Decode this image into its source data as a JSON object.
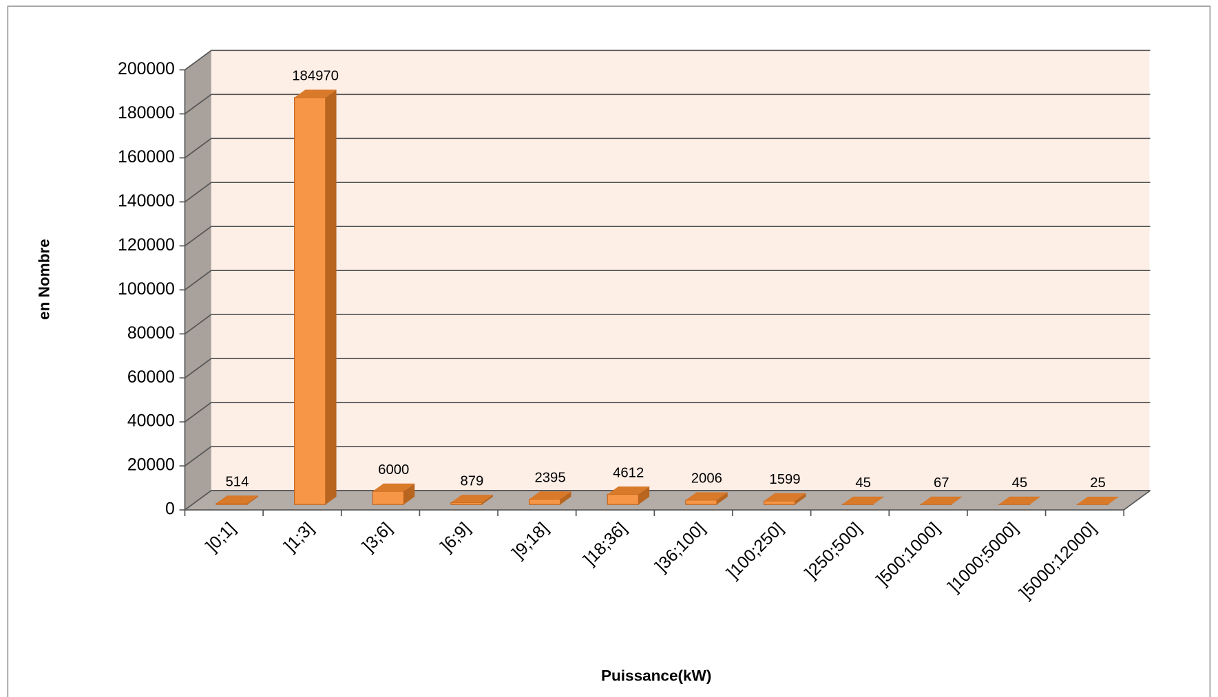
{
  "chart_data": {
    "type": "bar3d",
    "x_label": "Puissance(kW)",
    "y_label": "en Nombre",
    "categories": [
      "]0;1]",
      "]1;3]",
      "]3;6]",
      "]6;9]",
      "]9;18]",
      "]18;36]",
      "]36;100]",
      "]100;250]",
      "]250;500]",
      "]500;1000]",
      "]1000;5000]",
      "]5000;12000]"
    ],
    "values": [
      514,
      184970,
      6000,
      879,
      2395,
      4612,
      2006,
      1599,
      45,
      67,
      45,
      25
    ],
    "color": "#f79646",
    "ylim": [
      0,
      200000
    ],
    "yticks": [
      0,
      20000,
      40000,
      60000,
      80000,
      100000,
      120000,
      140000,
      160000,
      180000,
      200000
    ],
    "grid": true
  }
}
